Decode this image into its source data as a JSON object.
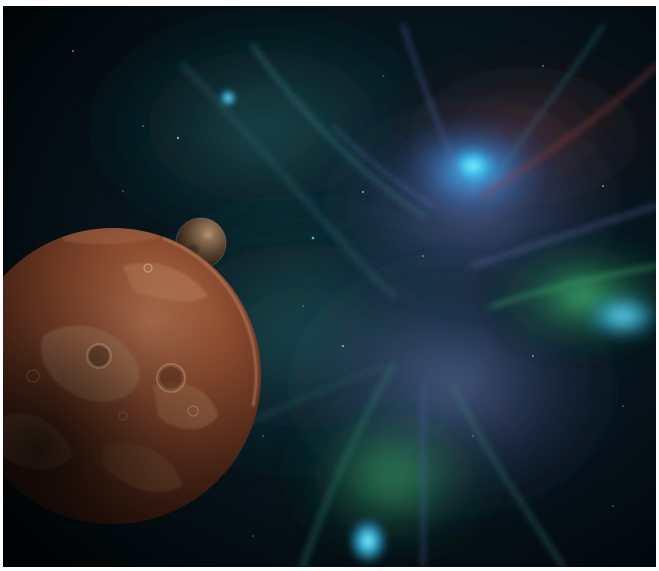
{
  "scene": {
    "subject": "space-scene",
    "background_color": "#02070a",
    "nebula_colors": {
      "teal": "#0e3a3c",
      "blue": "#3fa9e6",
      "cyan": "#47d9ff",
      "green": "#2f9a5a",
      "rust": "#5a2a2a",
      "violet": "#4a4f8a"
    },
    "planet_colors": {
      "light": "#a86a48",
      "mid": "#6b3a24",
      "dark": "#1f0e08",
      "crater": "#c7a27a"
    },
    "moon_colors": {
      "light": "#9a8060",
      "dark": "#1a1410"
    }
  }
}
